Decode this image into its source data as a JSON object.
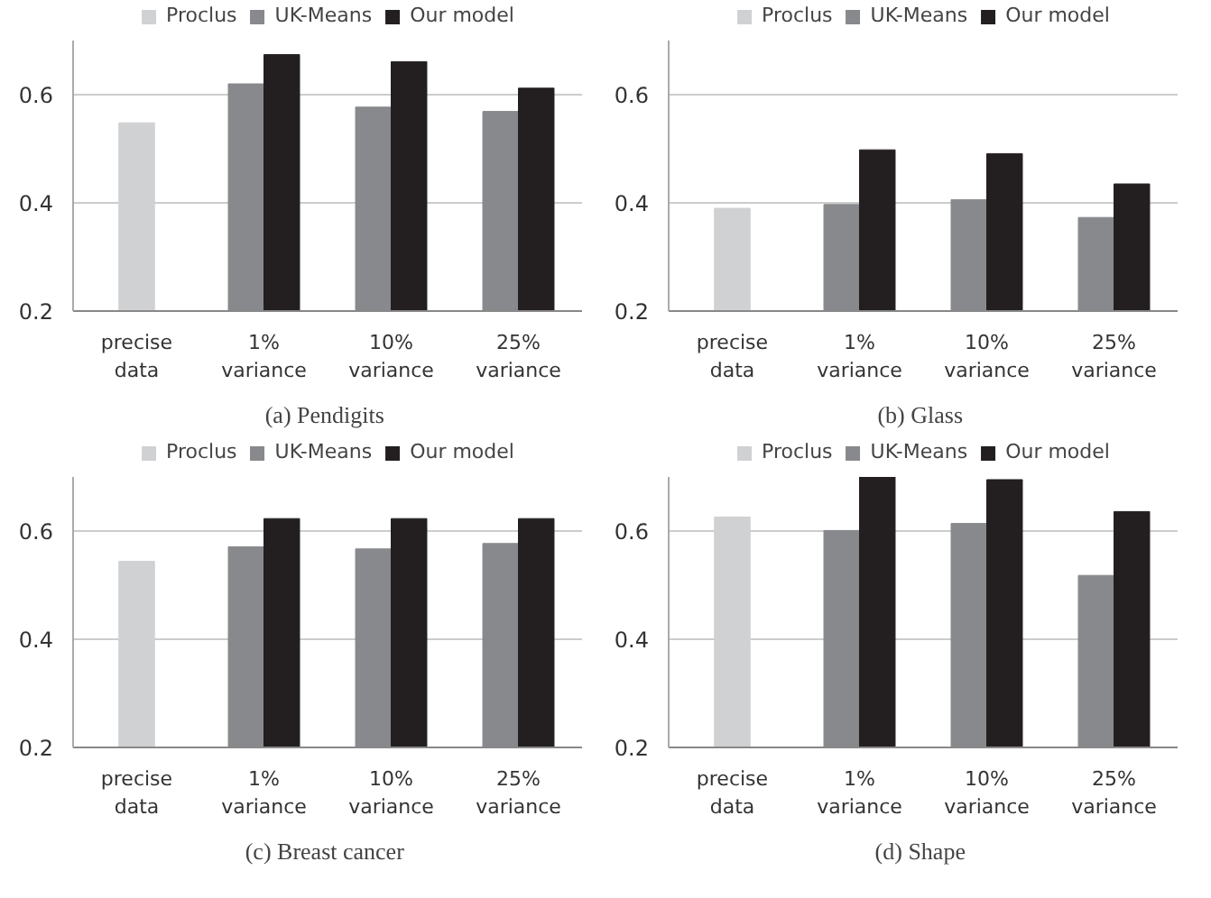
{
  "chart_data": [
    {
      "type": "bar",
      "title": "(a)  Pendigits",
      "categories": [
        "precise\ndata",
        "1%\nvariance",
        "10%\nvariance",
        "25%\nvariance"
      ],
      "ylim": [
        0.2,
        0.7
      ],
      "yticks": [
        0.2,
        0.4,
        0.6
      ],
      "grid": "y",
      "legend": "top",
      "series": [
        {
          "name": "Proclus",
          "color": "#d0d1d3",
          "values": [
            0.548,
            null,
            null,
            null
          ]
        },
        {
          "name": "UK-Means",
          "color": "#88898c",
          "values": [
            null,
            0.62,
            0.577,
            0.569
          ]
        },
        {
          "name": "Our model",
          "color": "#231f20",
          "values": [
            null,
            0.674,
            0.661,
            0.612
          ]
        }
      ]
    },
    {
      "type": "bar",
      "title": "(b)  Glass",
      "categories": [
        "precise\ndata",
        "1%\nvariance",
        "10%\nvariance",
        "25%\nvariance"
      ],
      "ylim": [
        0.2,
        0.7
      ],
      "yticks": [
        0.2,
        0.4,
        0.6
      ],
      "grid": "y",
      "legend": "top",
      "series": [
        {
          "name": "Proclus",
          "color": "#d0d1d3",
          "values": [
            0.39,
            null,
            null,
            null
          ]
        },
        {
          "name": "UK-Means",
          "color": "#88898c",
          "values": [
            null,
            0.397,
            0.406,
            0.373
          ]
        },
        {
          "name": "Our model",
          "color": "#231f20",
          "values": [
            null,
            0.498,
            0.491,
            0.435
          ]
        }
      ]
    },
    {
      "type": "bar",
      "title": "(c)  Breast cancer",
      "categories": [
        "precise\ndata",
        "1%\nvariance",
        "10%\nvariance",
        "25%\nvariance"
      ],
      "ylim": [
        0.2,
        0.7
      ],
      "yticks": [
        0.2,
        0.4,
        0.6
      ],
      "grid": "y",
      "legend": "top",
      "series": [
        {
          "name": "Proclus",
          "color": "#d0d1d3",
          "values": [
            0.544,
            null,
            null,
            null
          ]
        },
        {
          "name": "UK-Means",
          "color": "#88898c",
          "values": [
            null,
            0.571,
            0.567,
            0.577
          ]
        },
        {
          "name": "Our model",
          "color": "#231f20",
          "values": [
            null,
            0.623,
            0.623,
            0.623
          ]
        }
      ]
    },
    {
      "type": "bar",
      "title": "(d)  Shape",
      "categories": [
        "precise\ndata",
        "1%\nvariance",
        "10%\nvariance",
        "25%\nvariance"
      ],
      "ylim": [
        0.2,
        0.7
      ],
      "yticks": [
        0.2,
        0.4,
        0.6
      ],
      "grid": "y",
      "legend": "top",
      "series": [
        {
          "name": "Proclus",
          "color": "#d0d1d3",
          "values": [
            0.626,
            null,
            null,
            null
          ]
        },
        {
          "name": "UK-Means",
          "color": "#88898c",
          "values": [
            null,
            0.601,
            0.614,
            0.518
          ]
        },
        {
          "name": "Our model",
          "color": "#231f20",
          "values": [
            null,
            0.7,
            0.695,
            0.636
          ]
        }
      ]
    }
  ]
}
